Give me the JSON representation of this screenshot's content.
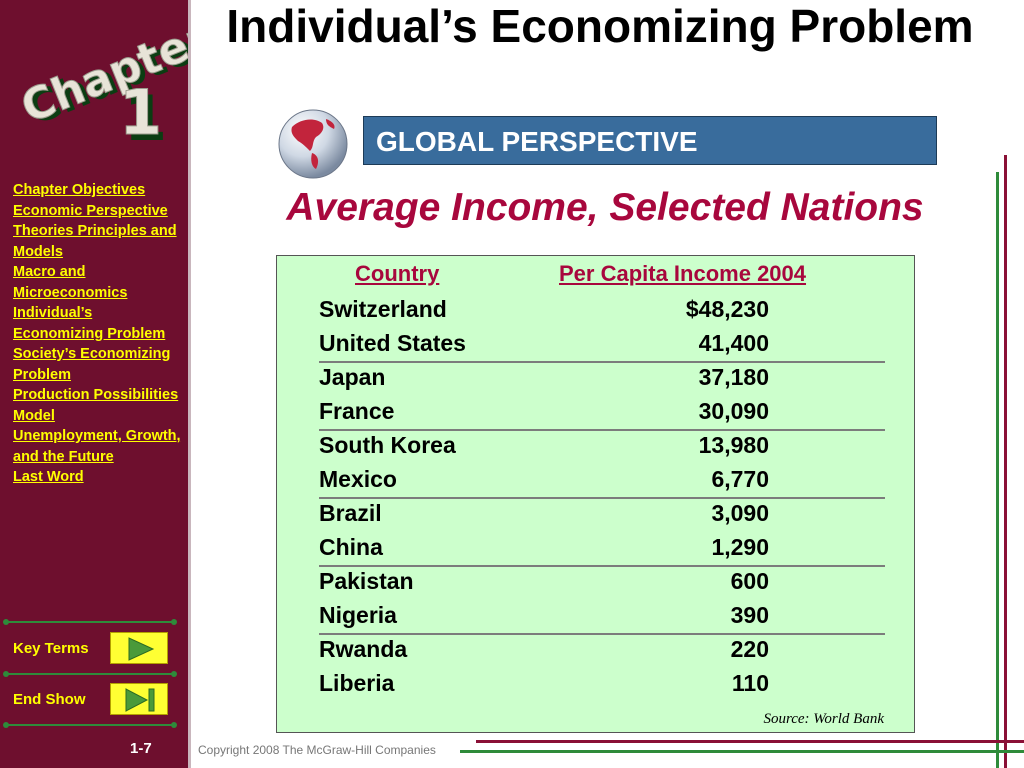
{
  "sidebar": {
    "chapter_word": "Chapter",
    "chapter_number": "1",
    "nav": [
      {
        "label": "Chapter Objectives"
      },
      {
        "label": "Economic Perspective"
      },
      {
        "label": "Theories Principles and Models"
      },
      {
        "label": "Macro and Microeconomics"
      },
      {
        "label": "Individual’s Economizing Problem"
      },
      {
        "label": "Society’s Economizing Problem"
      },
      {
        "label": "Production Possibilities Model"
      },
      {
        "label": "Unemployment, Growth, and the Future"
      },
      {
        "label": "Last Word"
      }
    ],
    "key_terms_label": "Key Terms",
    "end_show_label": "End Show",
    "page_number": "1-7"
  },
  "main": {
    "title": "Individual’s Economizing Problem",
    "banner": "GLOBAL PERSPECTIVE",
    "subtitle": "Average Income, Selected Nations"
  },
  "table": {
    "col_country": "Country",
    "col_income": "Per Capita Income 2004",
    "rows": [
      {
        "country": "Switzerland",
        "income": "$48,230"
      },
      {
        "country": "United States",
        "income": "41,400"
      },
      {
        "country": "Japan",
        "income": "37,180"
      },
      {
        "country": "France",
        "income": "30,090"
      },
      {
        "country": "South Korea",
        "income": "13,980"
      },
      {
        "country": "Mexico",
        "income": "6,770"
      },
      {
        "country": "Brazil",
        "income": "3,090"
      },
      {
        "country": "China",
        "income": "1,290"
      },
      {
        "country": "Pakistan",
        "income": "600"
      },
      {
        "country": "Nigeria",
        "income": "390"
      },
      {
        "country": "Rwanda",
        "income": "220"
      },
      {
        "country": "Liberia",
        "income": "110"
      }
    ],
    "source": "Source: World Bank"
  },
  "footer": {
    "copyright": "Copyright 2008 The McGraw-Hill Companies"
  },
  "colors": {
    "sidebar": "#6e0f2e",
    "link": "#ffff00",
    "accent": "#a8073d",
    "banner": "#396c9c",
    "table_bg": "#ccffcc",
    "green_line": "#2e8b3a"
  },
  "icons": [
    "globe-icon",
    "play-triangle-icon",
    "end-show-icon"
  ]
}
